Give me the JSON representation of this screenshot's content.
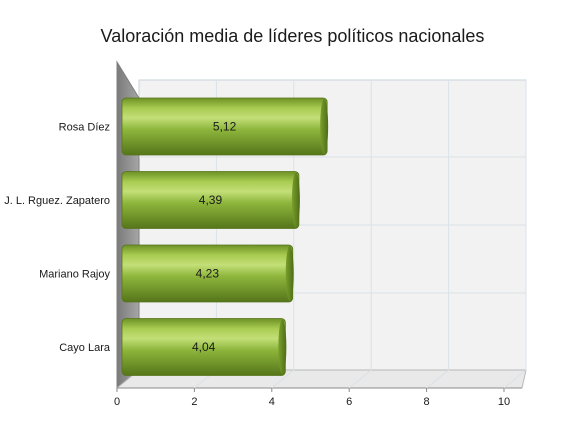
{
  "chart_data": {
    "type": "bar",
    "orientation": "horizontal",
    "title": "Valoración media de líderes políticos nacionales",
    "categories": [
      "Rosa Díez",
      "J. L. Rguez. Zapatero",
      "Mariano Rajoy",
      "Cayo Lara"
    ],
    "values": [
      5.12,
      4.39,
      4.23,
      4.04
    ],
    "data_labels": [
      "5,12",
      "4,39",
      "4,23",
      "4,04"
    ],
    "xlim": [
      0,
      10
    ],
    "x_ticks": [
      0,
      2,
      4,
      6,
      8,
      10
    ],
    "x_tick_labels": [
      "0",
      "2",
      "4",
      "6",
      "8",
      "10"
    ],
    "grid": true,
    "legend": "none",
    "style": "3d-cylinder",
    "colors": {
      "bar": "#8ab23a",
      "bar_dark": "#5e7f1c",
      "bar_light": "#c7e27a",
      "wall": "#f2f2f2",
      "grid": "#d9e2e8",
      "side_wall": "#8c8c8c"
    }
  }
}
